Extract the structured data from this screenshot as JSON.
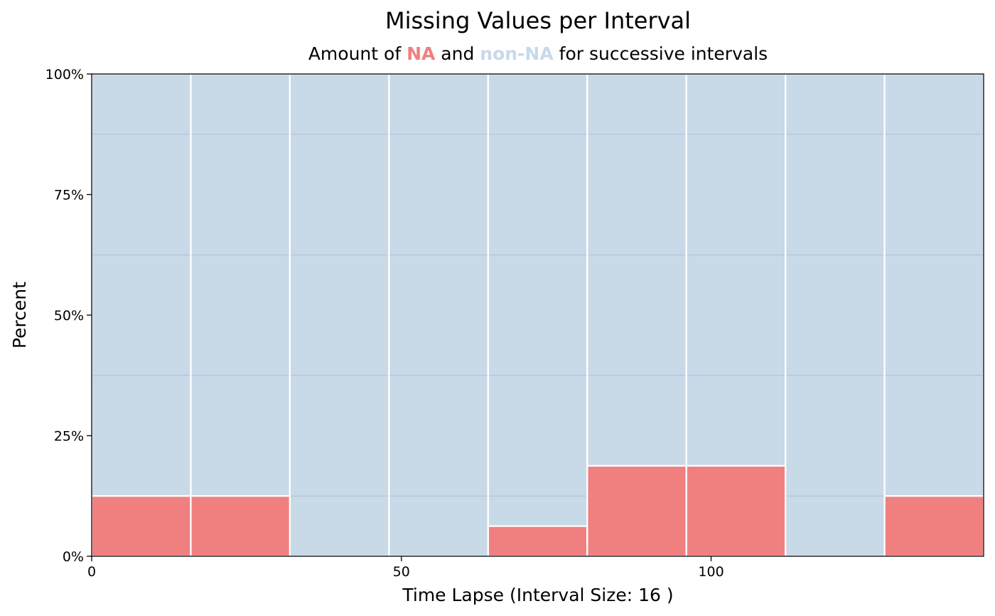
{
  "chart_data": {
    "type": "bar",
    "stacked": true,
    "title": "Missing Values per Interval",
    "subtitle": {
      "prefix": "Amount of ",
      "na_word": "NA",
      "middle": " and ",
      "non_na_word": "non-NA",
      "suffix": " for successive intervals"
    },
    "xlabel": "Time Lapse (Interval Size: 16 )",
    "ylabel": "Percent",
    "x_ticks": [
      {
        "value": 0,
        "label": "0"
      },
      {
        "value": 50,
        "label": "50"
      },
      {
        "value": 100,
        "label": "100"
      }
    ],
    "y_ticks": [
      {
        "value": 0,
        "label": "0%"
      },
      {
        "value": 25,
        "label": "25%"
      },
      {
        "value": 50,
        "label": "50%"
      },
      {
        "value": 75,
        "label": "75%"
      },
      {
        "value": 100,
        "label": "100%"
      }
    ],
    "xlim": [
      0,
      144
    ],
    "ylim": [
      0,
      100
    ],
    "interval_size": 16,
    "intervals": [
      {
        "start": 0,
        "end": 16,
        "na_percent": 12.5
      },
      {
        "start": 16,
        "end": 32,
        "na_percent": 12.5
      },
      {
        "start": 32,
        "end": 48,
        "na_percent": 0
      },
      {
        "start": 48,
        "end": 64,
        "na_percent": 0
      },
      {
        "start": 64,
        "end": 80,
        "na_percent": 6.25
      },
      {
        "start": 80,
        "end": 96,
        "na_percent": 18.75
      },
      {
        "start": 96,
        "end": 112,
        "na_percent": 18.75
      },
      {
        "start": 112,
        "end": 128,
        "na_percent": 0
      },
      {
        "start": 128,
        "end": 144,
        "na_percent": 12.5
      }
    ],
    "series": [
      {
        "name": "NA",
        "color": "#f08080"
      },
      {
        "name": "non-NA",
        "color": "#c8d9e8"
      }
    ],
    "grid": true
  }
}
